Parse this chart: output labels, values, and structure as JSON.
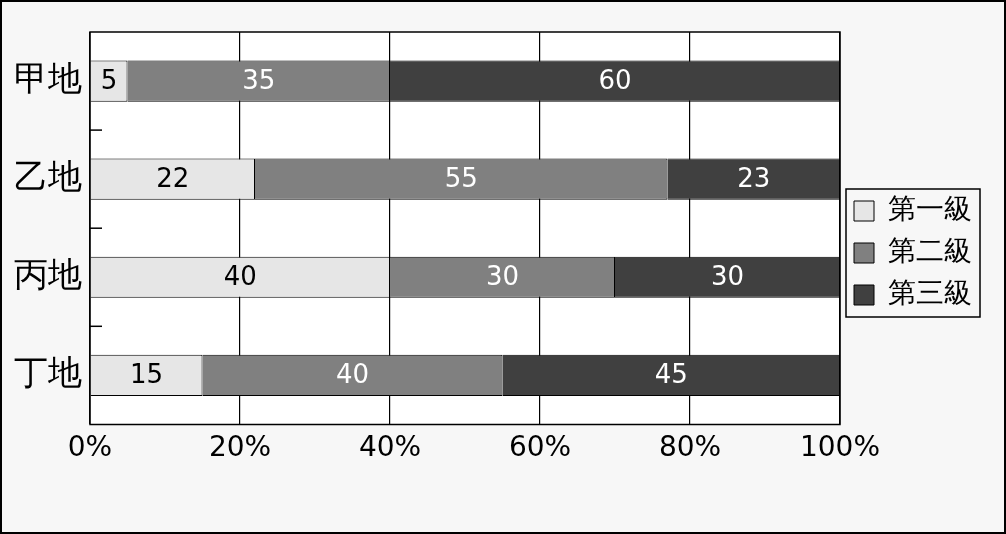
{
  "chart_data": {
    "type": "bar",
    "orientation": "horizontal",
    "stacked": true,
    "categories": [
      "甲地",
      "乙地",
      "丙地",
      "丁地"
    ],
    "series": [
      {
        "name": "第一級",
        "color": "#e6e6e6",
        "values": [
          5,
          22,
          40,
          15
        ]
      },
      {
        "name": "第二級",
        "color": "#808080",
        "values": [
          35,
          55,
          30,
          40
        ]
      },
      {
        "name": "第三級",
        "color": "#404040",
        "values": [
          60,
          23,
          30,
          45
        ]
      }
    ],
    "xlim": [
      0,
      100
    ],
    "xticks": [
      {
        "value": 0,
        "label": "0%"
      },
      {
        "value": 20,
        "label": "20%"
      },
      {
        "value": 40,
        "label": "40%"
      },
      {
        "value": 60,
        "label": "60%"
      },
      {
        "value": 80,
        "label": "80%"
      },
      {
        "value": 100,
        "label": "100%"
      }
    ],
    "grid": "x",
    "legend": "right",
    "data_labels": true
  }
}
